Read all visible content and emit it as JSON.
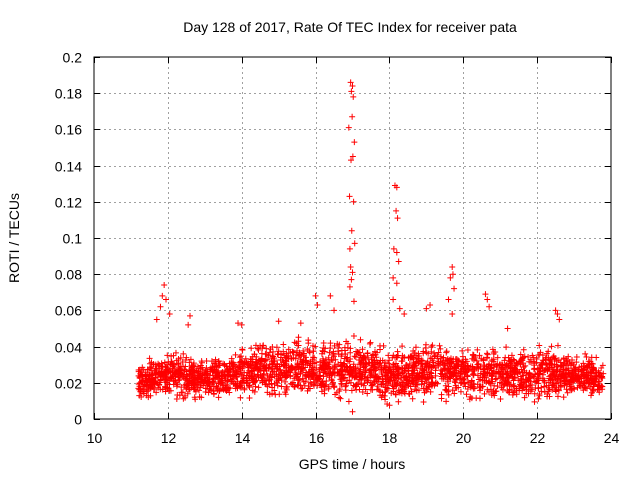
{
  "chart_data": {
    "type": "scatter",
    "title": "Day 128 of 2017, Rate Of TEC Index for receiver pata",
    "xlabel": "GPS time / hours",
    "ylabel": "ROTI / TECUs",
    "xlim": [
      10,
      24
    ],
    "ylim": [
      0,
      0.2
    ],
    "xticks": [
      10,
      12,
      14,
      16,
      18,
      20,
      22,
      24
    ],
    "yticks": [
      0,
      0.02,
      0.04,
      0.06,
      0.08,
      0.1,
      0.12,
      0.14,
      0.16,
      0.18,
      0.2
    ],
    "grid": true,
    "marker": "+",
    "series_color": "#ff0000",
    "data_time_range": [
      11.2,
      23.8
    ],
    "series": [
      {
        "name": "ROTI",
        "points": [
          [
            11.9,
            0.074
          ],
          [
            11.85,
            0.068
          ],
          [
            11.95,
            0.066
          ],
          [
            11.8,
            0.062
          ],
          [
            12.05,
            0.058
          ],
          [
            12.6,
            0.057
          ],
          [
            12.55,
            0.052
          ],
          [
            11.7,
            0.055
          ],
          [
            13.9,
            0.053
          ],
          [
            14.0,
            0.052
          ],
          [
            15.0,
            0.054
          ],
          [
            15.6,
            0.053
          ],
          [
            16.0,
            0.068
          ],
          [
            16.05,
            0.063
          ],
          [
            16.4,
            0.068
          ],
          [
            16.5,
            0.06
          ],
          [
            16.95,
            0.186
          ],
          [
            17.0,
            0.184
          ],
          [
            16.97,
            0.181
          ],
          [
            17.02,
            0.178
          ],
          [
            16.9,
            0.161
          ],
          [
            16.99,
            0.167
          ],
          [
            17.05,
            0.153
          ],
          [
            16.96,
            0.143
          ],
          [
            17.01,
            0.145
          ],
          [
            16.92,
            0.123
          ],
          [
            17.03,
            0.12
          ],
          [
            16.98,
            0.104
          ],
          [
            17.06,
            0.097
          ],
          [
            16.93,
            0.094
          ],
          [
            16.95,
            0.084
          ],
          [
            17.0,
            0.081
          ],
          [
            16.97,
            0.077
          ],
          [
            16.93,
            0.073
          ],
          [
            17.04,
            0.065
          ],
          [
            17.0,
            0.004
          ],
          [
            18.15,
            0.129
          ],
          [
            18.2,
            0.128
          ],
          [
            18.18,
            0.115
          ],
          [
            18.22,
            0.111
          ],
          [
            18.12,
            0.094
          ],
          [
            18.2,
            0.092
          ],
          [
            18.25,
            0.087
          ],
          [
            18.1,
            0.078
          ],
          [
            18.2,
            0.075
          ],
          [
            18.1,
            0.066
          ],
          [
            18.28,
            0.061
          ],
          [
            18.4,
            0.058
          ],
          [
            19.0,
            0.061
          ],
          [
            19.1,
            0.063
          ],
          [
            19.7,
            0.084
          ],
          [
            19.72,
            0.08
          ],
          [
            19.65,
            0.078
          ],
          [
            19.75,
            0.072
          ],
          [
            19.6,
            0.066
          ],
          [
            19.7,
            0.058
          ],
          [
            20.6,
            0.069
          ],
          [
            20.65,
            0.066
          ],
          [
            20.7,
            0.062
          ],
          [
            21.2,
            0.05
          ],
          [
            22.5,
            0.06
          ],
          [
            22.55,
            0.058
          ],
          [
            22.6,
            0.055
          ],
          [
            23.3,
            0.036
          ],
          [
            23.6,
            0.034
          ]
        ]
      }
    ],
    "band_profile": {
      "t": [
        11.2,
        11.6,
        12.0,
        12.4,
        12.8,
        13.2,
        13.6,
        14.0,
        14.4,
        14.8,
        15.2,
        15.6,
        16.0,
        16.4,
        16.8,
        17.2,
        17.6,
        18.0,
        18.4,
        18.8,
        19.2,
        19.6,
        20.0,
        20.4,
        20.8,
        21.2,
        21.6,
        22.0,
        22.4,
        22.8,
        23.2,
        23.6,
        23.8
      ],
      "low": [
        0.007,
        0.008,
        0.006,
        0.007,
        0.008,
        0.008,
        0.008,
        0.008,
        0.008,
        0.008,
        0.008,
        0.008,
        0.007,
        0.006,
        0.005,
        0.007,
        0.007,
        0.005,
        0.005,
        0.007,
        0.007,
        0.007,
        0.007,
        0.006,
        0.007,
        0.008,
        0.007,
        0.007,
        0.007,
        0.008,
        0.009,
        0.009,
        0.01
      ],
      "high": [
        0.034,
        0.037,
        0.042,
        0.04,
        0.037,
        0.036,
        0.038,
        0.043,
        0.045,
        0.046,
        0.047,
        0.048,
        0.047,
        0.048,
        0.05,
        0.048,
        0.044,
        0.042,
        0.045,
        0.044,
        0.046,
        0.046,
        0.043,
        0.042,
        0.045,
        0.044,
        0.042,
        0.044,
        0.045,
        0.042,
        0.038,
        0.036,
        0.034
      ]
    }
  }
}
